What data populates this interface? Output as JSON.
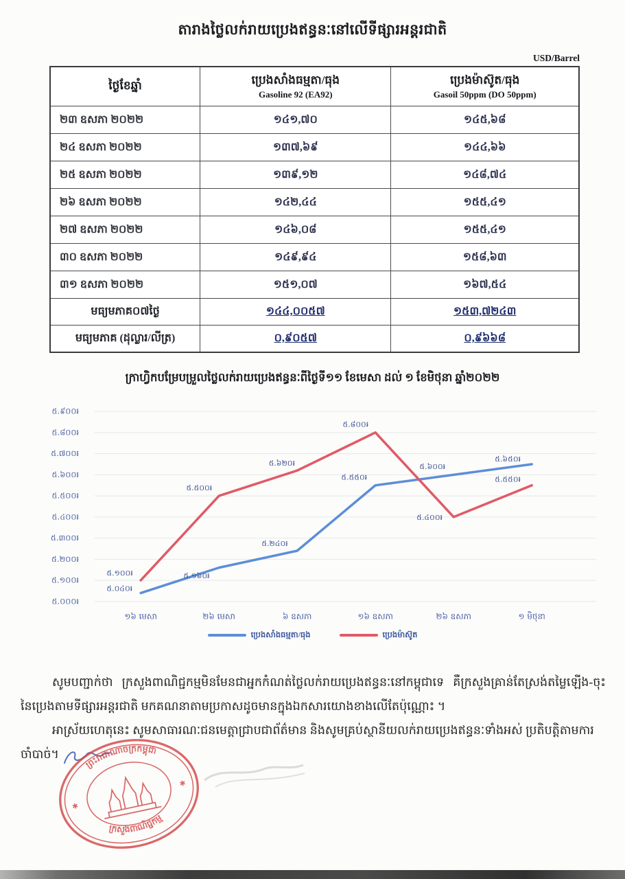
{
  "document": {
    "title": "តារាងថ្លៃលក់រាយប្រេងឥន្ធនៈនៅលើទីផ្សារអន្តរជាតិ",
    "unit_note": "USD/Barrel"
  },
  "table": {
    "header": {
      "date_col": "ថ្ងៃខែឆ្នាំ",
      "gasoline_col_kh": "ប្រេងសាំងធម្មតា/ធុង",
      "gasoline_col_en": "Gasoline 92 (EA92)",
      "gasoil_col_kh": "ប្រេងម៉ាស៊ូត/ធុង",
      "gasoil_col_en": "Gasoil 50ppm (DO 50ppm)"
    },
    "rows": [
      [
        "២៣ ឧសភា ២០២២",
        "១៤១,៧០",
        "១៤៥,៦៨"
      ],
      [
        "២៤ ឧសភា ២០២២",
        "១៣៧,៦៩",
        "១៤៤,៦៦"
      ],
      [
        "២៥ ឧសភា ២០២២",
        "១៣៩,១២",
        "១៤៨,៧៤"
      ],
      [
        "២៦ ឧសភា ២០២២",
        "១៤២,៤៤",
        "១៥៥,៤១"
      ],
      [
        "២៧ ឧសភា ២០២២",
        "១៤៦,០៨",
        "១៥៥,៤១"
      ],
      [
        "៣០ ឧសភា ២០២២",
        "១៤៩,៩៤",
        "១៥៨,៦៣"
      ],
      [
        "៣១ ឧសភា ២០២២",
        "១៥១,០៧",
        "១៦៧,៥៤"
      ]
    ],
    "summary_rows": [
      [
        "មធ្យមភាគ០៧ថ្ងៃ",
        "១៤៤,០០៥៧",
        "១៥៣,៧២៤៣"
      ],
      [
        "មធ្យមភាគ (ដុល្លារ/លីត្រ)",
        "០,៩០៥៧",
        "០,៩៦៦៨"
      ]
    ]
  },
  "chart_data": {
    "type": "line",
    "title": "ក្រាហ្វិកបម្រែបម្រួលថ្លៃលក់រាយប្រេងឥន្ធនៈពីថ្ងៃទី១១ ខែមេសា ដល់ ១ ខែមិថុនា ឆ្នាំ២០២២",
    "categories": [
      "១៦ មេសា",
      "២៦ មេសា",
      "៦ ឧសភា",
      "១៦ ឧសភា",
      "២៦ ឧសភា",
      "១ មិថុនា"
    ],
    "series": [
      {
        "name": "ប្រេងសាំងធម្មតា/ធុង",
        "color": "#5d8ed8",
        "values": [
          5040,
          5160,
          5240,
          5550,
          5600,
          5650
        ],
        "point_labels": [
          "៥.០៤០៛",
          "៥.១៦០៛",
          "៥.២៤០៛",
          "៥.៥៥០៛",
          "៥.៦០០៛",
          "៥.៦៥០៛"
        ]
      },
      {
        "name": "ប្រេងម៉ាស៊ូត",
        "color": "#e05a66",
        "values": [
          5100,
          5500,
          5620,
          5800,
          5400,
          5550
        ],
        "point_labels": [
          "៥.១០០៛",
          "៥.៥០០៛",
          "៥.៦២០៛",
          "៥.៨០០៛",
          "៥.៤០០៛",
          "៥.៥៥០៛"
        ]
      }
    ],
    "y_tick_labels": [
      "៥.៩០០៛",
      "៥.៨០០៛",
      "៥.៧០០៛",
      "៥.៦០០៛",
      "៥.៥០០៛",
      "៥.៤០០៛",
      "៥.៣០០៛",
      "៥.២០០៛",
      "៥.១០០៛",
      "៥.០០០៛"
    ],
    "y_tick_values": [
      5900,
      5800,
      5700,
      5600,
      5500,
      5400,
      5300,
      5200,
      5100,
      5000
    ],
    "ylim": [
      5000,
      5950
    ],
    "grid": true,
    "legend_position": "bottom"
  },
  "footer": {
    "paragraph1": "សូមបញ្ជាក់ថា ក្រសួងពាណិជ្ជកម្មមិនមែនជាអ្នកកំណត់ថ្លៃលក់រាយប្រេងឥន្ធនៈនៅកម្ពុជាទេ គឺក្រសួងគ្រាន់តែស្រង់តម្លៃឡើង-ចុះ នៃប្រេងតាមទីផ្សារអន្តរជាតិ មកគណនាតាមប្រកាសដូចមានក្នុងឯកសារយោងខាងលើតែប៉ុណ្ណោះ ។",
    "paragraph2": "អាស្រ័យហេតុនេះ សូមសាធារណៈជនមេត្តាជ្រាបជាព័ត៌មាន និងសូមគ្រប់ស្ថានីយលក់រាយប្រេងឥន្ធនៈទាំងអស់ ប្រតិបត្តិតាមការ",
    "paragraph2_end": "ចាំបាច់។"
  },
  "stamp": {
    "arc_top": "ព្រះរាជាណាចក្រកម្ពុជា",
    "arc_bottom": "ក្រសួងពាណិជ្ជកម្ម",
    "color": "#d24a4a"
  },
  "colors": {
    "gasoline_line": "#5d8ed8",
    "gasoil_line": "#e05a66",
    "axis_text": "#4b5fa5",
    "point_label_text": "#3b4f93",
    "stamp_red": "#d24a4a"
  }
}
